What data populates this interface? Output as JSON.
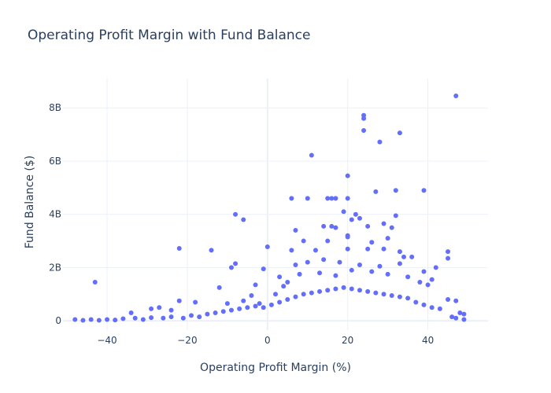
{
  "chart_data": {
    "type": "scatter",
    "title": "Operating Profit Margin with Fund Balance",
    "xlabel": "Operating Profit Margin (%)",
    "ylabel": "Fund Balance ($)",
    "xlim": [
      -51,
      55
    ],
    "ylim": [
      -0.35,
      9.1
    ],
    "y_unit": "billions of dollars",
    "x_ticks": [
      -40,
      -20,
      0,
      20,
      40
    ],
    "x_tick_labels": [
      "−40",
      "−20",
      "0",
      "20",
      "40"
    ],
    "y_ticks": [
      0,
      2,
      4,
      6,
      8
    ],
    "y_tick_labels": [
      "0",
      "2B",
      "4B",
      "6B",
      "8B"
    ],
    "grid": true,
    "legend": "none",
    "marker_color": "#636efa",
    "series": [
      {
        "points": [
          [
            47,
            8.45
          ],
          [
            24,
            7.72
          ],
          [
            24,
            7.6
          ],
          [
            33,
            7.06
          ],
          [
            24,
            7.15
          ],
          [
            28,
            6.72
          ],
          [
            11,
            6.22
          ],
          [
            20,
            5.45
          ],
          [
            27,
            4.85
          ],
          [
            32,
            4.9
          ],
          [
            39,
            4.9
          ],
          [
            6,
            4.6
          ],
          [
            10,
            4.6
          ],
          [
            15,
            4.6
          ],
          [
            16,
            4.6
          ],
          [
            17,
            4.6
          ],
          [
            20,
            4.6
          ],
          [
            19,
            4.1
          ],
          [
            -8,
            4.0
          ],
          [
            -6,
            3.8
          ],
          [
            22,
            4.0
          ],
          [
            23,
            3.85
          ],
          [
            21,
            3.8
          ],
          [
            14,
            3.55
          ],
          [
            16,
            3.55
          ],
          [
            17,
            3.5
          ],
          [
            25,
            3.55
          ],
          [
            29,
            3.65
          ],
          [
            32,
            3.95
          ],
          [
            7,
            3.4
          ],
          [
            20,
            3.2
          ],
          [
            20,
            3.15
          ],
          [
            15,
            3.0
          ],
          [
            9,
            3.0
          ],
          [
            31,
            3.5
          ],
          [
            30,
            3.1
          ],
          [
            -22,
            2.72
          ],
          [
            -14,
            2.65
          ],
          [
            6,
            2.65
          ],
          [
            12,
            2.65
          ],
          [
            20,
            2.7
          ],
          [
            25,
            2.7
          ],
          [
            29,
            2.7
          ],
          [
            33,
            2.6
          ],
          [
            45,
            2.6
          ],
          [
            45,
            2.35
          ],
          [
            0,
            2.78
          ],
          [
            26,
            2.95
          ],
          [
            -8,
            2.15
          ],
          [
            -9,
            2.0
          ],
          [
            -1,
            1.95
          ],
          [
            7,
            2.1
          ],
          [
            10,
            2.2
          ],
          [
            14,
            2.3
          ],
          [
            18,
            2.2
          ],
          [
            23,
            2.1
          ],
          [
            28,
            2.05
          ],
          [
            33,
            2.15
          ],
          [
            34,
            2.4
          ],
          [
            36,
            2.4
          ],
          [
            42,
            2.0
          ],
          [
            39,
            1.85
          ],
          [
            -43,
            1.45
          ],
          [
            -12,
            1.25
          ],
          [
            -3,
            1.35
          ],
          [
            3,
            1.65
          ],
          [
            8,
            1.75
          ],
          [
            13,
            1.8
          ],
          [
            17,
            1.7
          ],
          [
            21,
            1.9
          ],
          [
            26,
            1.85
          ],
          [
            30,
            1.75
          ],
          [
            35,
            1.65
          ],
          [
            38,
            1.45
          ],
          [
            40,
            1.35
          ],
          [
            41,
            1.55
          ],
          [
            -22,
            0.75
          ],
          [
            -18,
            0.7
          ],
          [
            -27,
            0.5
          ],
          [
            -29,
            0.45
          ],
          [
            -24,
            0.4
          ],
          [
            -34,
            0.3
          ],
          [
            -10,
            0.65
          ],
          [
            -6,
            0.75
          ],
          [
            -4,
            0.95
          ],
          [
            -2,
            0.65
          ],
          [
            2,
            1.0
          ],
          [
            4,
            1.3
          ],
          [
            5,
            1.45
          ],
          [
            -48,
            0.05
          ],
          [
            -46,
            0.02
          ],
          [
            -44,
            0.05
          ],
          [
            -42,
            0.02
          ],
          [
            -40,
            0.05
          ],
          [
            -38,
            0.03
          ],
          [
            -36,
            0.08
          ],
          [
            -33,
            0.1
          ],
          [
            -31,
            0.05
          ],
          [
            -29,
            0.12
          ],
          [
            -26,
            0.1
          ],
          [
            -24,
            0.15
          ],
          [
            -21,
            0.1
          ],
          [
            -19,
            0.2
          ],
          [
            -17,
            0.15
          ],
          [
            -15,
            0.25
          ],
          [
            -13,
            0.3
          ],
          [
            -11,
            0.35
          ],
          [
            -9,
            0.4
          ],
          [
            -7,
            0.45
          ],
          [
            -5,
            0.5
          ],
          [
            -3,
            0.55
          ],
          [
            -1,
            0.5
          ],
          [
            1,
            0.6
          ],
          [
            3,
            0.7
          ],
          [
            5,
            0.8
          ],
          [
            7,
            0.9
          ],
          [
            9,
            1.0
          ],
          [
            11,
            1.05
          ],
          [
            13,
            1.1
          ],
          [
            15,
            1.15
          ],
          [
            17,
            1.2
          ],
          [
            19,
            1.25
          ],
          [
            21,
            1.2
          ],
          [
            23,
            1.15
          ],
          [
            25,
            1.1
          ],
          [
            27,
            1.05
          ],
          [
            29,
            1.0
          ],
          [
            31,
            0.95
          ],
          [
            33,
            0.9
          ],
          [
            35,
            0.85
          ],
          [
            37,
            0.7
          ],
          [
            39,
            0.6
          ],
          [
            41,
            0.5
          ],
          [
            43,
            0.45
          ],
          [
            45,
            0.8
          ],
          [
            47,
            0.75
          ],
          [
            48,
            0.3
          ],
          [
            49,
            0.25
          ],
          [
            49,
            0.05
          ],
          [
            47,
            0.1
          ],
          [
            46,
            0.15
          ]
        ]
      }
    ]
  }
}
